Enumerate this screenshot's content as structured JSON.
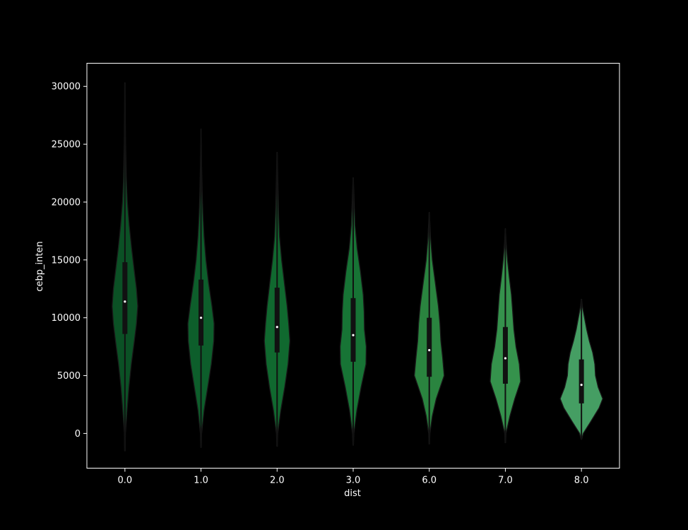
{
  "chart_data": {
    "type": "violin",
    "xlabel": "dist",
    "ylabel": "cebp_inten",
    "categories": [
      "0.0",
      "1.0",
      "2.0",
      "3.0",
      "6.0",
      "7.0",
      "8.0"
    ],
    "ylim": [
      -3000,
      32000
    ],
    "yticks": [
      0,
      5000,
      10000,
      15000,
      20000,
      25000,
      30000
    ],
    "grid": false,
    "legend": "none",
    "colors": {
      "background": "#000000",
      "text": "#ffffff",
      "axes_edge": "#ffffff",
      "violin_edge": "#1a1a1a",
      "box": "#111111",
      "median": "#ffffff",
      "fills": [
        "#0b5125",
        "#0d5e2b",
        "#10692f",
        "#177435",
        "#2a843f",
        "#35924c",
        "#459e63"
      ]
    },
    "violins": [
      {
        "category": "0.0",
        "median": 11400,
        "q1": 8600,
        "q3": 14800,
        "whisker_low": 0,
        "whisker_high": 23000,
        "kde_min": -1500,
        "kde_max": 30300,
        "profile": [
          [
            -1500,
            0.01
          ],
          [
            0,
            0.015
          ],
          [
            2000,
            0.07
          ],
          [
            4000,
            0.13
          ],
          [
            6000,
            0.21
          ],
          [
            8000,
            0.31
          ],
          [
            9500,
            0.38
          ],
          [
            11000,
            0.42
          ],
          [
            12500,
            0.38
          ],
          [
            14000,
            0.31
          ],
          [
            16000,
            0.22
          ],
          [
            18000,
            0.14
          ],
          [
            20000,
            0.08
          ],
          [
            22000,
            0.045
          ],
          [
            25000,
            0.02
          ],
          [
            28000,
            0.01
          ],
          [
            30300,
            0.005
          ]
        ]
      },
      {
        "category": "1.0",
        "median": 10000,
        "q1": 7600,
        "q3": 13300,
        "whisker_low": 0,
        "whisker_high": 21500,
        "kde_min": -1200,
        "kde_max": 26300,
        "profile": [
          [
            -1200,
            0.01
          ],
          [
            0,
            0.02
          ],
          [
            2000,
            0.1
          ],
          [
            4000,
            0.22
          ],
          [
            6000,
            0.34
          ],
          [
            8000,
            0.42
          ],
          [
            9500,
            0.43
          ],
          [
            11000,
            0.36
          ],
          [
            13000,
            0.25
          ],
          [
            15000,
            0.16
          ],
          [
            17000,
            0.1
          ],
          [
            19000,
            0.06
          ],
          [
            21000,
            0.035
          ],
          [
            23000,
            0.02
          ],
          [
            26300,
            0.005
          ]
        ]
      },
      {
        "category": "2.0",
        "median": 9200,
        "q1": 7000,
        "q3": 12600,
        "whisker_low": 800,
        "whisker_high": 20500,
        "kde_min": -1100,
        "kde_max": 24300,
        "profile": [
          [
            -1100,
            0.01
          ],
          [
            0,
            0.02
          ],
          [
            2000,
            0.12
          ],
          [
            4000,
            0.25
          ],
          [
            6000,
            0.36
          ],
          [
            8000,
            0.42
          ],
          [
            9500,
            0.38
          ],
          [
            11000,
            0.33
          ],
          [
            13000,
            0.24
          ],
          [
            15000,
            0.15
          ],
          [
            17000,
            0.08
          ],
          [
            19000,
            0.05
          ],
          [
            21000,
            0.03
          ],
          [
            24300,
            0.005
          ]
        ]
      },
      {
        "category": "3.0",
        "median": 8500,
        "q1": 6200,
        "q3": 11700,
        "whisker_low": 1000,
        "whisker_high": 19000,
        "kde_min": -1000,
        "kde_max": 22100,
        "profile": [
          [
            -1000,
            0.01
          ],
          [
            0,
            0.02
          ],
          [
            2000,
            0.12
          ],
          [
            4000,
            0.26
          ],
          [
            6000,
            0.42
          ],
          [
            7500,
            0.43
          ],
          [
            9000,
            0.37
          ],
          [
            10500,
            0.36
          ],
          [
            12000,
            0.33
          ],
          [
            14000,
            0.24
          ],
          [
            16000,
            0.13
          ],
          [
            18000,
            0.06
          ],
          [
            20000,
            0.03
          ],
          [
            22100,
            0.005
          ]
        ]
      },
      {
        "category": "6.0",
        "median": 7200,
        "q1": 4900,
        "q3": 10000,
        "whisker_low": 700,
        "whisker_high": 17000,
        "kde_min": -900,
        "kde_max": 19100,
        "profile": [
          [
            -900,
            0.01
          ],
          [
            0,
            0.02
          ],
          [
            1500,
            0.1
          ],
          [
            3000,
            0.23
          ],
          [
            5000,
            0.49
          ],
          [
            6500,
            0.44
          ],
          [
            8000,
            0.38
          ],
          [
            9500,
            0.35
          ],
          [
            11000,
            0.3
          ],
          [
            13000,
            0.2
          ],
          [
            15000,
            0.1
          ],
          [
            17000,
            0.04
          ],
          [
            19100,
            0.005
          ]
        ]
      },
      {
        "category": "7.0",
        "median": 6500,
        "q1": 4300,
        "q3": 9200,
        "whisker_low": 700,
        "whisker_high": 15500,
        "kde_min": -800,
        "kde_max": 17700,
        "profile": [
          [
            -800,
            0.01
          ],
          [
            0,
            0.02
          ],
          [
            1500,
            0.15
          ],
          [
            3000,
            0.31
          ],
          [
            4500,
            0.5
          ],
          [
            6000,
            0.46
          ],
          [
            7500,
            0.35
          ],
          [
            9000,
            0.28
          ],
          [
            10500,
            0.24
          ],
          [
            12000,
            0.2
          ],
          [
            13500,
            0.13
          ],
          [
            15000,
            0.07
          ],
          [
            16500,
            0.025
          ],
          [
            17700,
            0.005
          ]
        ]
      },
      {
        "category": "8.0",
        "median": 4200,
        "q1": 2600,
        "q3": 6400,
        "whisker_low": 800,
        "whisker_high": 10500,
        "kde_min": -500,
        "kde_max": 11600,
        "profile": [
          [
            -500,
            0.01
          ],
          [
            0,
            0.06
          ],
          [
            1000,
            0.3
          ],
          [
            2200,
            0.58
          ],
          [
            3000,
            0.7
          ],
          [
            4000,
            0.55
          ],
          [
            5000,
            0.46
          ],
          [
            6000,
            0.44
          ],
          [
            7000,
            0.37
          ],
          [
            8000,
            0.26
          ],
          [
            9000,
            0.17
          ],
          [
            10000,
            0.1
          ],
          [
            11000,
            0.03
          ],
          [
            11600,
            0.005
          ]
        ]
      }
    ]
  }
}
